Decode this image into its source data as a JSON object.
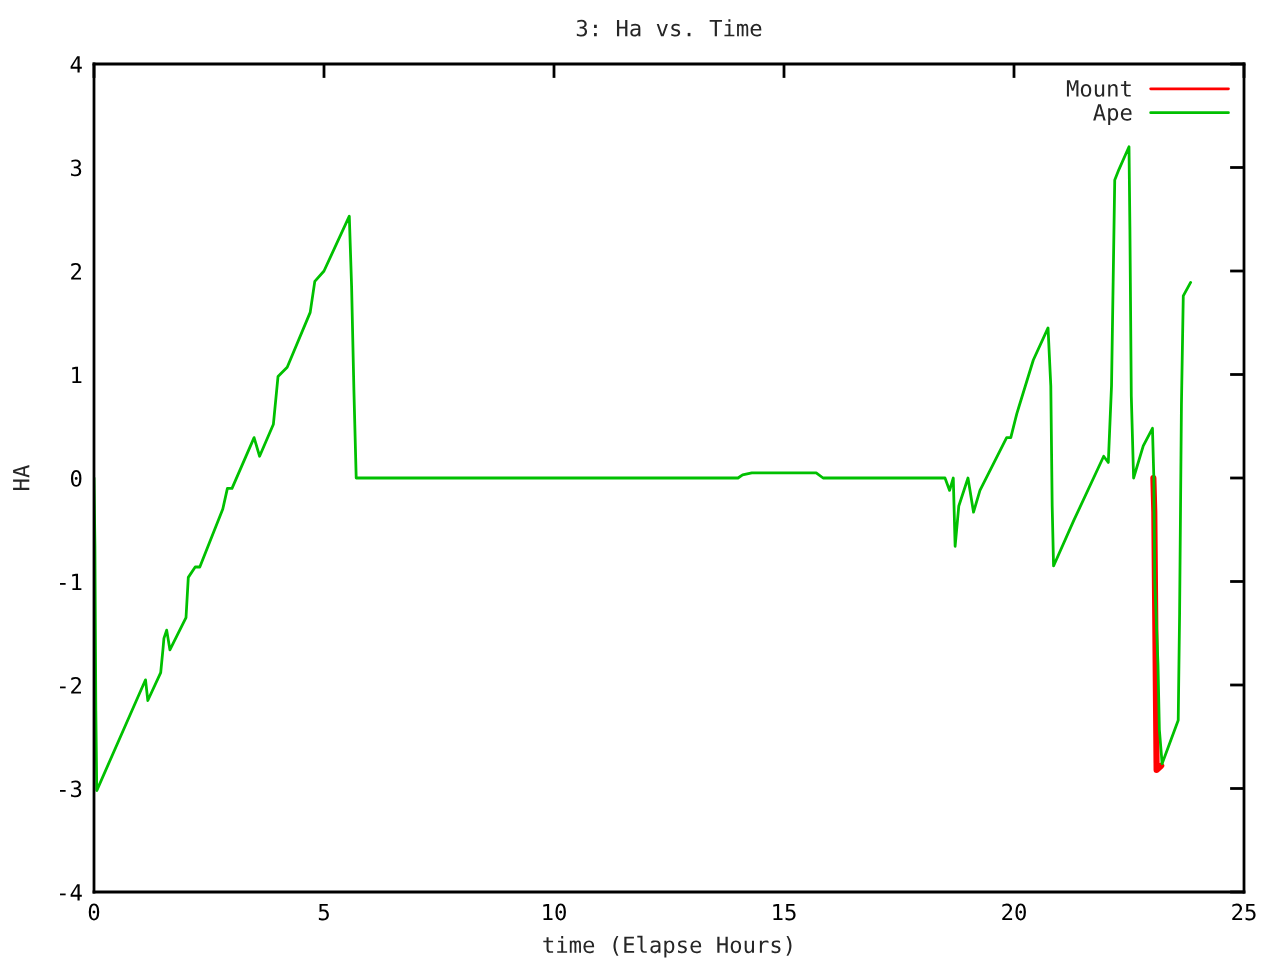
{
  "chart_data": {
    "type": "line",
    "title": "3: Ha vs. Time",
    "xlabel": "time (Elapse Hours)",
    "ylabel": "HA",
    "xlim": [
      0,
      25
    ],
    "xticks": [
      0,
      5,
      10,
      15,
      20,
      25
    ],
    "ylim": [
      -4,
      4
    ],
    "yticks": [
      -4,
      -3,
      -2,
      -1,
      0,
      1,
      2,
      3,
      4
    ],
    "grid": false,
    "legend": "top right",
    "series": [
      {
        "name": "Mount",
        "color": "#ff0000",
        "x": [
          23.03,
          23.05,
          23.1,
          23.2
        ],
        "values": [
          0,
          -0.33,
          -2.82,
          -2.78
        ]
      },
      {
        "name": "Ape",
        "color": "#00c000",
        "x": [
          0,
          0.02,
          0.04,
          0.06,
          1.07,
          1.12,
          1.17,
          1.45,
          1.5,
          1.52,
          1.58,
          1.65,
          2.0,
          2.05,
          2.2,
          2.3,
          2.8,
          2.9,
          3.0,
          3.48,
          3.6,
          3.9,
          4.0,
          4.2,
          4.7,
          4.8,
          5.0,
          5.55,
          5.6,
          5.65,
          5.7,
          14.0,
          14.1,
          14.3,
          15.7,
          15.85,
          18.5,
          18.6,
          18.68,
          18.72,
          18.8,
          19.0,
          19.12,
          19.26,
          19.84,
          19.93,
          20.06,
          20.42,
          20.74,
          20.8,
          20.83,
          20.86,
          21.3,
          21.95,
          22.05,
          22.12,
          22.19,
          22.28,
          22.5,
          22.52,
          22.55,
          22.6,
          22.81,
          23.01,
          23.04,
          23.06,
          23.13,
          23.16,
          23.22,
          23.57,
          23.6,
          23.64,
          23.68,
          23.84
        ],
        "values": [
          0,
          -0.65,
          -2.25,
          -3.02,
          -2.0,
          -1.95,
          -2.15,
          -1.88,
          -1.65,
          -1.55,
          -1.47,
          -1.66,
          -1.35,
          -0.96,
          -0.86,
          -0.86,
          -0.3,
          -0.1,
          -0.1,
          0.39,
          0.21,
          0.52,
          0.98,
          1.07,
          1.6,
          1.9,
          2.0,
          2.53,
          1.85,
          0.85,
          0,
          0,
          0.03,
          0.05,
          0.05,
          0,
          0,
          -0.12,
          0,
          -0.66,
          -0.27,
          0,
          -0.33,
          -0.12,
          0.39,
          0.39,
          0.62,
          1.14,
          1.45,
          0.89,
          -0.27,
          -0.85,
          -0.41,
          0.21,
          0.15,
          0.89,
          2.88,
          2.98,
          3.2,
          2.4,
          0.79,
          0,
          0.31,
          0.48,
          0,
          -0.99,
          -1.8,
          -2.43,
          -2.76,
          -2.34,
          -1.31,
          0.71,
          1.76,
          1.89
        ]
      }
    ]
  }
}
